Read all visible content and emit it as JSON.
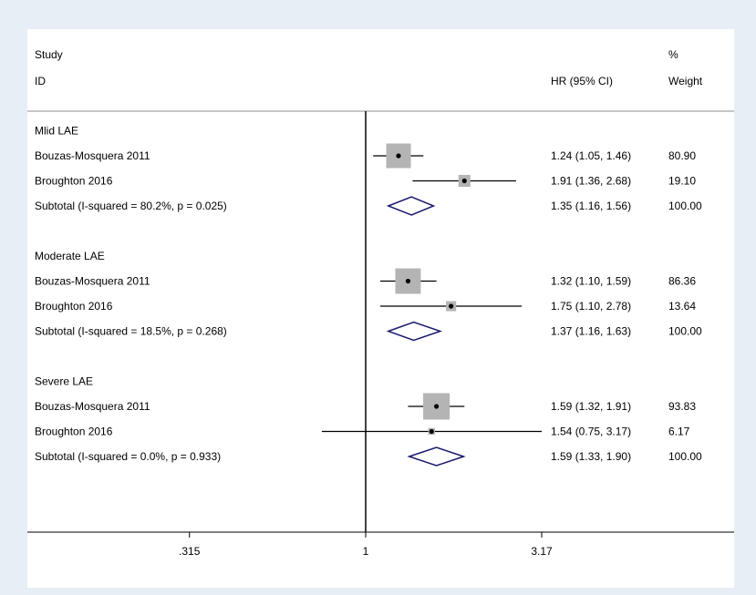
{
  "chart_data": {
    "type": "forest",
    "header": {
      "study_line1": "Study",
      "study_line2": "ID",
      "effect_label": "HR (95% CI)",
      "weight_line1": "%",
      "weight_line2": "Weight"
    },
    "x_scale": "log",
    "x_ticks": [
      {
        "value": 0.315,
        "label": ".315"
      },
      {
        "value": 1,
        "label": "1"
      },
      {
        "value": 3.17,
        "label": "3.17"
      }
    ],
    "null_line": 1,
    "groups": [
      {
        "label": "Mlid LAE",
        "studies": [
          {
            "id": "Bouzas-Mosquera 2011",
            "hr": 1.24,
            "lo": 1.05,
            "hi": 1.46,
            "ci_text": "1.24 (1.05, 1.46)",
            "weight": 80.9,
            "weight_text": "80.90"
          },
          {
            "id": "Broughton 2016",
            "hr": 1.91,
            "lo": 1.36,
            "hi": 2.68,
            "ci_text": "1.91 (1.36, 2.68)",
            "weight": 19.1,
            "weight_text": "19.10"
          }
        ],
        "subtotal": {
          "label": "Subtotal  (I-squared = 80.2%, p = 0.025)",
          "hr": 1.35,
          "lo": 1.16,
          "hi": 1.56,
          "ci_text": "1.35 (1.16, 1.56)",
          "weight_text": "100.00"
        }
      },
      {
        "label": "Moderate LAE",
        "studies": [
          {
            "id": "Bouzas-Mosquera 2011",
            "hr": 1.32,
            "lo": 1.1,
            "hi": 1.59,
            "ci_text": "1.32 (1.10, 1.59)",
            "weight": 86.36,
            "weight_text": "86.36"
          },
          {
            "id": "Broughton 2016",
            "hr": 1.75,
            "lo": 1.1,
            "hi": 2.78,
            "ci_text": "1.75 (1.10, 2.78)",
            "weight": 13.64,
            "weight_text": "13.64"
          }
        ],
        "subtotal": {
          "label": "Subtotal  (I-squared = 18.5%, p = 0.268)",
          "hr": 1.37,
          "lo": 1.16,
          "hi": 1.63,
          "ci_text": "1.37 (1.16, 1.63)",
          "weight_text": "100.00"
        }
      },
      {
        "label": "Severe LAE",
        "studies": [
          {
            "id": "Bouzas-Mosquera 2011",
            "hr": 1.59,
            "lo": 1.32,
            "hi": 1.91,
            "ci_text": "1.59 (1.32, 1.91)",
            "weight": 93.83,
            "weight_text": "93.83"
          },
          {
            "id": "Broughton 2016",
            "hr": 1.54,
            "lo": 0.75,
            "hi": 3.17,
            "ci_text": "1.54 (0.75, 3.17)",
            "weight": 6.17,
            "weight_text": "6.17"
          }
        ],
        "subtotal": {
          "label": "Subtotal  (I-squared = 0.0%, p = 0.933)",
          "hr": 1.59,
          "lo": 1.33,
          "hi": 1.9,
          "ci_text": "1.59 (1.33, 1.90)",
          "weight_text": "100.00"
        }
      }
    ],
    "colors": {
      "background": "#e8eef5",
      "panel": "#ffffff",
      "box": "#b4b4b4",
      "diamond": "#1a1a6e",
      "line": "#000000"
    }
  }
}
